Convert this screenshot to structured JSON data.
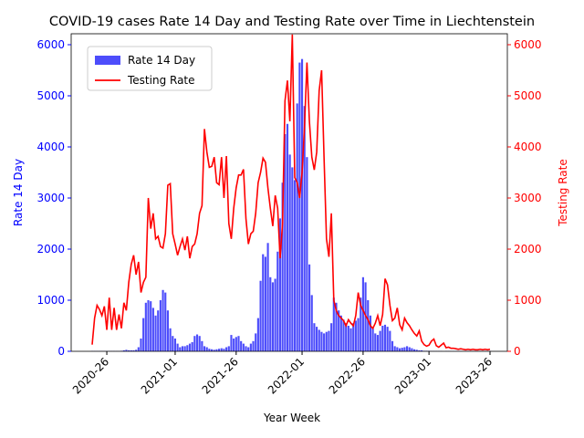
{
  "chart_data": {
    "type": "bar-line",
    "title": "COVID-19 cases Rate 14 Day and Testing Rate over Time in Liechtenstein",
    "x_label": "Year Week",
    "y_label": "Rate 14 Day",
    "y2_label": "Testing Rate",
    "y_label_color": "blue",
    "y2_label_color": "red",
    "legend": "upper left",
    "categories": [
      null,
      null,
      null,
      null,
      null,
      null,
      "2020-26",
      null,
      null,
      null,
      null,
      null,
      null,
      null,
      null,
      null,
      null,
      null,
      null,
      null,
      null,
      null,
      null,
      null,
      null,
      null,
      null,
      null,
      null,
      null,
      null,
      null,
      null,
      null,
      "2021-01",
      null,
      null,
      null,
      null,
      null,
      null,
      null,
      null,
      null,
      null,
      null,
      null,
      null,
      null,
      null,
      null,
      null,
      null,
      null,
      null,
      null,
      null,
      null,
      null,
      "2021-26",
      null,
      null,
      null,
      null,
      null,
      null,
      null,
      null,
      null,
      null,
      null,
      null,
      null,
      null,
      null,
      null,
      null,
      null,
      null,
      null,
      null,
      null,
      null,
      null,
      null,
      null,
      "2022-01",
      null,
      null,
      null,
      null,
      null,
      null,
      null,
      null,
      null,
      null,
      null,
      null,
      null,
      null,
      null,
      null,
      null,
      null,
      null,
      null,
      null,
      null,
      null,
      null,
      "2022-26",
      null,
      null,
      null,
      null,
      null,
      null,
      null,
      null,
      null,
      null,
      null,
      null,
      null,
      null,
      null,
      null,
      null,
      null,
      null,
      null,
      null,
      null,
      null,
      null,
      null,
      null,
      "2023-01",
      null,
      null,
      null,
      null,
      null,
      null,
      null,
      null,
      null,
      null,
      null,
      null,
      null,
      null,
      null,
      null,
      null,
      null,
      null,
      null,
      null,
      null,
      null,
      null,
      "2023-26"
    ],
    "ylim": [
      0,
      6214
    ],
    "yticks": [
      0,
      1000,
      2000,
      3000,
      4000,
      5000,
      6000
    ],
    "y2lim": [
      0,
      6214
    ],
    "y2ticks": [
      0,
      1000,
      2000,
      3000,
      4000,
      5000,
      6000
    ],
    "series": [
      {
        "name": "Rate 14 Day",
        "kind": "bar",
        "color": "#4d4dfb",
        "values": [
          5,
          5,
          5,
          5,
          5,
          5,
          5,
          5,
          5,
          5,
          5,
          5,
          10,
          20,
          30,
          20,
          20,
          20,
          30,
          80,
          250,
          650,
          950,
          1000,
          980,
          850,
          700,
          800,
          1000,
          1200,
          1150,
          800,
          450,
          300,
          250,
          150,
          80,
          100,
          100,
          120,
          150,
          180,
          300,
          330,
          300,
          200,
          100,
          80,
          50,
          40,
          30,
          40,
          50,
          60,
          50,
          80,
          100,
          320,
          250,
          280,
          300,
          200,
          150,
          100,
          80,
          150,
          200,
          350,
          650,
          1380,
          1900,
          1850,
          2120,
          1450,
          1350,
          1420,
          1950,
          2600,
          3300,
          4250,
          4450,
          3850,
          3600,
          3350,
          4850,
          5650,
          5720,
          4800,
          3800,
          1700,
          1100,
          550,
          480,
          420,
          380,
          350,
          380,
          400,
          550,
          1050,
          950,
          800,
          700,
          620,
          550,
          500,
          450,
          550,
          600,
          650,
          1050,
          1450,
          1350,
          1000,
          700,
          450,
          350,
          320,
          400,
          500,
          520,
          480,
          400,
          200,
          100,
          80,
          60,
          70,
          80,
          100,
          80,
          60,
          40,
          30,
          20,
          20,
          10,
          10,
          10,
          5,
          5,
          5,
          5,
          5,
          0,
          5,
          5,
          5,
          5,
          5,
          5,
          5,
          0,
          5,
          5,
          5,
          5,
          5,
          5,
          5,
          5,
          5,
          5,
          5
        ]
      },
      {
        "name": "Testing Rate",
        "kind": "line",
        "axis": "y2",
        "color": "red",
        "values": [
          130,
          650,
          900,
          820,
          700,
          880,
          420,
          1050,
          420,
          850,
          420,
          720,
          450,
          950,
          800,
          1350,
          1700,
          1880,
          1500,
          1750,
          1150,
          1350,
          1450,
          3000,
          2400,
          2700,
          2200,
          2250,
          2050,
          2020,
          2300,
          3250,
          3280,
          2300,
          2100,
          1880,
          2050,
          2200,
          1980,
          2250,
          1820,
          2050,
          2100,
          2300,
          2700,
          2850,
          4350,
          3900,
          3600,
          3620,
          3800,
          3300,
          3260,
          3800,
          3000,
          3820,
          2500,
          2200,
          2800,
          3200,
          3450,
          3450,
          3560,
          2600,
          2100,
          2300,
          2350,
          2700,
          3300,
          3500,
          3780,
          3700,
          3200,
          2800,
          2450,
          3050,
          2800,
          1820,
          2500,
          4900,
          5300,
          4500,
          6200,
          3400,
          3300,
          3000,
          3500,
          4400,
          5650,
          4500,
          3800,
          3550,
          3900,
          5100,
          5500,
          3800,
          2200,
          1850,
          2700,
          1000,
          800,
          700,
          650,
          600,
          500,
          620,
          550,
          500,
          700,
          1150,
          900,
          800,
          700,
          620,
          500,
          450,
          550,
          700,
          500,
          720,
          1420,
          1300,
          900,
          600,
          650,
          850,
          520,
          420,
          650,
          560,
          500,
          420,
          350,
          300,
          400,
          200,
          130,
          100,
          120,
          200,
          240,
          110,
          80,
          120,
          160,
          70,
          80,
          60,
          60,
          50,
          40,
          50,
          40,
          30,
          40,
          30,
          40,
          30,
          30,
          40,
          30,
          40,
          30,
          40
        ]
      }
    ]
  }
}
